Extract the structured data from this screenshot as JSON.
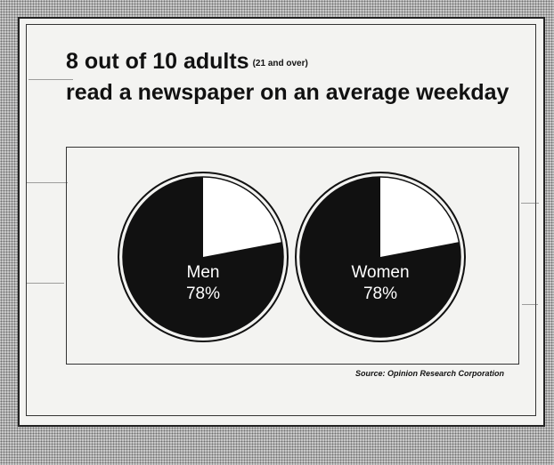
{
  "title": {
    "main": "8 out of 10 adults",
    "note": "(21 and over)",
    "line2": "read a newspaper on an average weekday"
  },
  "source": "Source: Opinion Research Corporation",
  "colors": {
    "pie_fill": "#111111",
    "pie_empty": "#ffffff",
    "label": "#ffffff"
  },
  "chart_data": {
    "type": "pie",
    "charts": [
      {
        "label": "Men",
        "value_label": "78%",
        "values": [
          78,
          22
        ]
      },
      {
        "label": "Women",
        "value_label": "78%",
        "values": [
          78,
          22
        ]
      }
    ]
  }
}
